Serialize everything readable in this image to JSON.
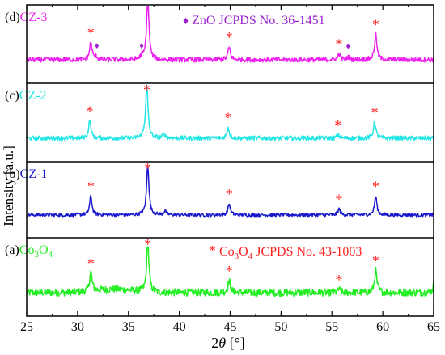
{
  "chart_data": {
    "type": "line",
    "xlabel_main": "2",
    "xlabel_theta": "θ",
    "xlabel_unit": " [°]",
    "ylabel": "Intensity [a.u.]",
    "xlim": [
      25,
      65
    ],
    "xticks": [
      25,
      30,
      35,
      40,
      45,
      50,
      55,
      60,
      65
    ],
    "panels": [
      {
        "tag": "(a)",
        "name_main": "Co",
        "name_sub1": "3",
        "name_mid": "O",
        "name_sub2": "4",
        "color": "#22ee22",
        "noise": 0.9,
        "peaks": [
          {
            "x": 31.3,
            "h": 0.29
          },
          {
            "x": 36.9,
            "h": 0.73
          },
          {
            "x": 44.9,
            "h": 0.18
          },
          {
            "x": 55.7,
            "h": 0.05
          },
          {
            "x": 59.3,
            "h": 0.33
          },
          {
            "x": 65.1,
            "h": 0.18
          }
        ],
        "asterisk_x": [
          31.3,
          36.9,
          44.9,
          55.7,
          59.3
        ],
        "legend": {
          "marker": "*",
          "pre": " Co",
          "sub1": "3",
          "mid": "O",
          "sub2": "4",
          "post": " JCPDS No. 43-1003",
          "color": "#ff2020"
        }
      },
      {
        "tag": "(b)",
        "name_main": "CZ-1",
        "color": "#1a1acc",
        "noise": 0.45,
        "peaks": [
          {
            "x": 31.3,
            "h": 0.29
          },
          {
            "x": 36.9,
            "h": 0.77
          },
          {
            "x": 38.6,
            "h": 0.06
          },
          {
            "x": 44.9,
            "h": 0.17
          },
          {
            "x": 55.7,
            "h": 0.09
          },
          {
            "x": 59.3,
            "h": 0.29
          }
        ],
        "asterisk_x": [
          31.3,
          36.9,
          44.9,
          55.7,
          59.3
        ]
      },
      {
        "tag": "(c)",
        "name_main": "CZ-2",
        "color": "#22e6e6",
        "noise": 0.55,
        "peaks": [
          {
            "x": 31.2,
            "h": 0.26
          },
          {
            "x": 36.8,
            "h": 0.82
          },
          {
            "x": 38.5,
            "h": 0.06
          },
          {
            "x": 44.8,
            "h": 0.16
          },
          {
            "x": 55.6,
            "h": 0.05
          },
          {
            "x": 59.2,
            "h": 0.24
          }
        ],
        "asterisk_x": [
          31.2,
          36.8,
          44.8,
          55.6,
          59.2
        ]
      },
      {
        "tag": "(d)",
        "name_main": "CZ-3",
        "color": "#ee22ee",
        "noise": 0.6,
        "peaks": [
          {
            "x": 31.3,
            "h": 0.26
          },
          {
            "x": 31.8,
            "h": 0.05
          },
          {
            "x": 36.3,
            "h": 0.05
          },
          {
            "x": 36.9,
            "h": 0.93
          },
          {
            "x": 44.9,
            "h": 0.19
          },
          {
            "x": 55.7,
            "h": 0.09
          },
          {
            "x": 56.6,
            "h": 0.04
          },
          {
            "x": 59.3,
            "h": 0.38
          }
        ],
        "asterisk_x": [
          31.3,
          44.9,
          55.7,
          59.3
        ],
        "diamond_x": [
          31.9,
          36.3,
          56.6
        ],
        "legend": {
          "marker": "♦",
          "post": " ZnO JCPDS No. 36-1451",
          "color": "#9a22cc"
        }
      }
    ]
  }
}
